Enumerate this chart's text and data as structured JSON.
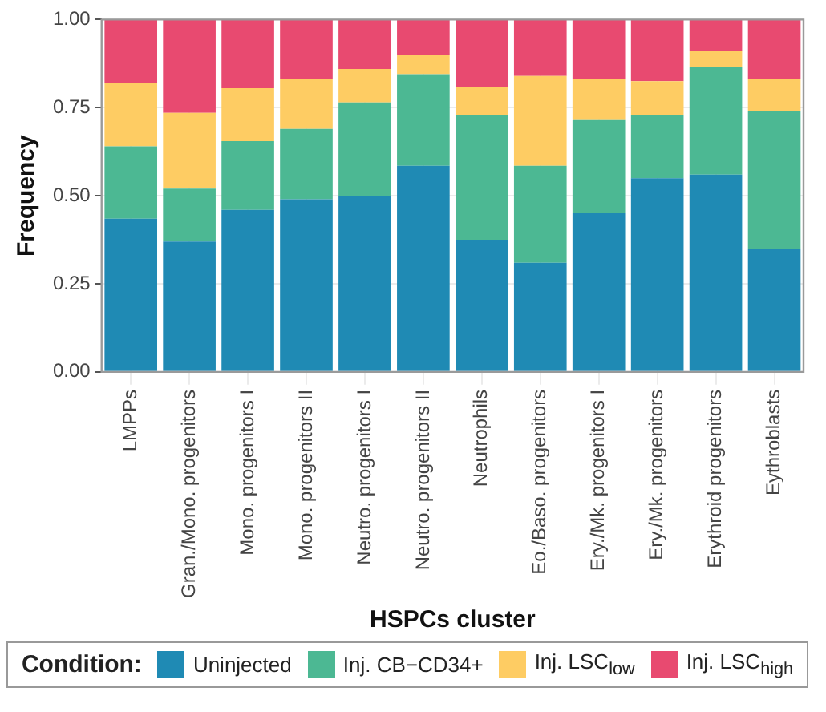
{
  "chart_data": {
    "type": "bar",
    "stacked": true,
    "xlabel": "HSPCs cluster",
    "ylabel": "Frequency",
    "legend_title": "Condition:",
    "legend": "bottom",
    "grid": true,
    "categories": [
      "LMPPs",
      "Gran./Mono. progenitors",
      "Mono. progenitors I",
      "Mono. progenitors II",
      "Neutro. progenitors I",
      "Neutro. progenitors II",
      "Neutrophils",
      "Eo./Baso. progenitors",
      "Ery./Mk. progenitors I",
      "Ery./Mk. progenitors",
      "Erythroid progenitors",
      "Eythroblasts"
    ],
    "ylim": [
      0,
      1
    ],
    "yticks": [
      {
        "value": 0,
        "label": "0.00"
      },
      {
        "value": 0.25,
        "label": "0.25"
      },
      {
        "value": 0.5,
        "label": "0.50"
      },
      {
        "value": 0.75,
        "label": "0.75"
      },
      {
        "value": 1,
        "label": "1.00"
      }
    ],
    "series": [
      {
        "name": "Uninjected",
        "color": "#1f8ab4",
        "values": [
          0.435,
          0.37,
          0.46,
          0.49,
          0.5,
          0.585,
          0.375,
          0.31,
          0.45,
          0.55,
          0.56,
          0.35
        ]
      },
      {
        "name": "Inj. CB−CD34+",
        "color": "#4cb893",
        "values": [
          0.205,
          0.15,
          0.195,
          0.2,
          0.265,
          0.26,
          0.355,
          0.275,
          0.265,
          0.18,
          0.305,
          0.39
        ]
      },
      {
        "name": "Inj. LSC$_{low}$",
        "color": "#fecc63",
        "values": [
          0.18,
          0.215,
          0.15,
          0.14,
          0.095,
          0.055,
          0.08,
          0.255,
          0.115,
          0.095,
          0.045,
          0.09
        ]
      },
      {
        "name": "Inj. LSC$_{high}$",
        "color": "#e84a70",
        "values": [
          0.18,
          0.265,
          0.195,
          0.17,
          0.14,
          0.1,
          0.19,
          0.16,
          0.17,
          0.175,
          0.09,
          0.17
        ]
      }
    ]
  }
}
